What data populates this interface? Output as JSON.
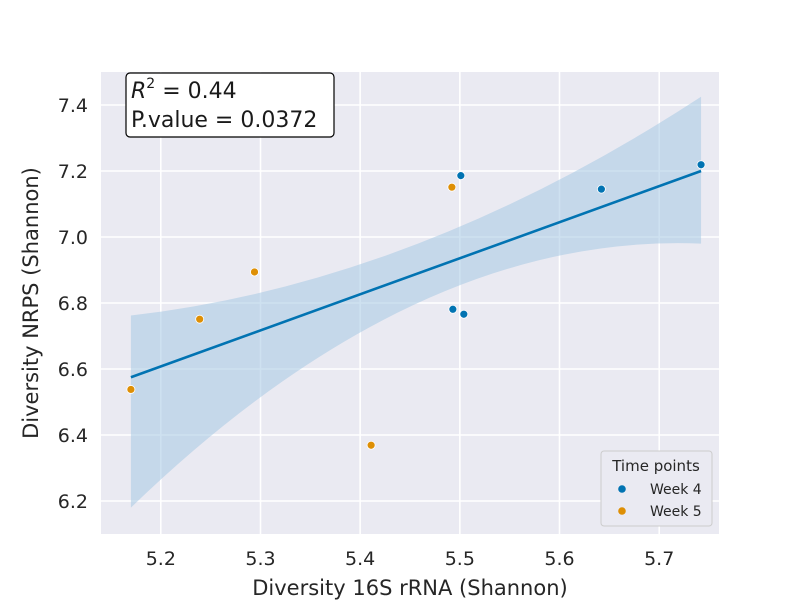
{
  "chart_data": {
    "type": "scatter",
    "xlabel": "Diversity 16S rRNA (Shannon)",
    "ylabel": "Diversity NRPS (Shannon)",
    "xlim": [
      5.14,
      5.76
    ],
    "ylim": [
      6.1,
      7.5
    ],
    "xticks": [
      5.2,
      5.3,
      5.4,
      5.5,
      5.6,
      5.7
    ],
    "yticks": [
      6.2,
      6.4,
      6.6,
      6.8,
      7.0,
      7.2,
      7.4
    ],
    "xtick_labels": [
      "5.2",
      "5.3",
      "5.4",
      "5.5",
      "5.6",
      "5.7"
    ],
    "ytick_labels": [
      "6.2",
      "6.4",
      "6.6",
      "6.8",
      "7.0",
      "7.2",
      "7.4"
    ],
    "grid": true,
    "legend": {
      "title": "Time points",
      "placement": "bottom-right"
    },
    "annotation": {
      "r2_symbol": "R",
      "r2_sup": "2",
      "r2_value": " = 0.44",
      "pvalue_line": "P.value = 0.0372",
      "placement": "top-left"
    },
    "series": [
      {
        "name": "Week 4",
        "color": "#0173b2",
        "points": [
          {
            "x": 5.501,
            "y": 7.186
          },
          {
            "x": 5.742,
            "y": 7.219
          },
          {
            "x": 5.642,
            "y": 7.145
          },
          {
            "x": 5.493,
            "y": 6.781
          },
          {
            "x": 5.504,
            "y": 6.766
          }
        ]
      },
      {
        "name": "Week 5",
        "color": "#de8f05",
        "points": [
          {
            "x": 5.492,
            "y": 7.151
          },
          {
            "x": 5.294,
            "y": 6.894
          },
          {
            "x": 5.239,
            "y": 6.751
          },
          {
            "x": 5.17,
            "y": 6.538
          },
          {
            "x": 5.411,
            "y": 6.369
          }
        ]
      }
    ],
    "regression": {
      "color": "#0173b2",
      "x_range": [
        5.17,
        5.742
      ],
      "fit": [
        6.575,
        7.2
      ],
      "ci_lower": [
        6.18,
        6.98
      ],
      "ci_upper": [
        6.762,
        7.425
      ],
      "ci_color": "#a6c8e3"
    }
  }
}
